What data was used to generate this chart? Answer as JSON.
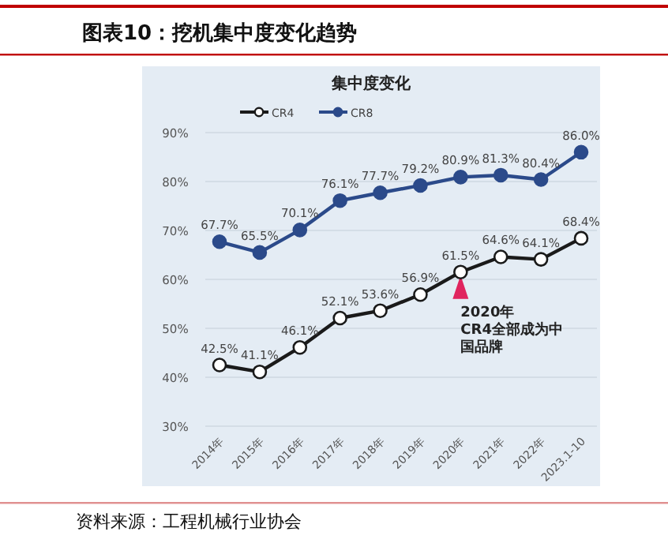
{
  "chart_data": {
    "type": "line",
    "title": "图表10：挖机集中度变化趋势",
    "subtitle": "集中度变化",
    "categories": [
      "2014年",
      "2015年",
      "2016年",
      "2017年",
      "2018年",
      "2019年",
      "2020年",
      "2021年",
      "2022年",
      "2023.1-10"
    ],
    "series": [
      {
        "name": "CR4",
        "color": "#1a1a1a",
        "values": [
          42.5,
          41.1,
          46.1,
          52.1,
          53.6,
          56.9,
          61.5,
          64.6,
          64.1,
          68.4
        ]
      },
      {
        "name": "CR8",
        "color": "#2b4a8a",
        "values": [
          67.7,
          65.5,
          70.1,
          76.1,
          77.7,
          79.2,
          80.9,
          81.3,
          80.4,
          86.0
        ]
      }
    ],
    "ylim": [
      30,
      90
    ],
    "yticks": [
      {
        "value": 30,
        "label": "30%"
      },
      {
        "value": 40,
        "label": "40%"
      },
      {
        "value": 50,
        "label": "50%"
      },
      {
        "value": 60,
        "label": "60%"
      },
      {
        "value": 70,
        "label": "70%"
      },
      {
        "value": 80,
        "label": "80%"
      },
      {
        "value": 90,
        "label": "90%"
      }
    ],
    "value_labels": [
      [
        "42.5%",
        "41.1%",
        "46.1%",
        "52.1%",
        "53.6%",
        "56.9%",
        "61.5%",
        "64.6%",
        "64.1%",
        "68.4%"
      ],
      [
        "67.7%",
        "65.5%",
        "70.1%",
        "76.1%",
        "77.7%",
        "79.2%",
        "80.9%",
        "81.3%",
        "80.4%",
        "86.0%"
      ]
    ],
    "grid": "y",
    "legend": "top left",
    "marker": "circle",
    "annotations": [
      {
        "text": "2020年\nCR4全部成为中国品牌",
        "x": "2020年",
        "y": 61.5
      },
      "资料来源：工程机械行业协会"
    ]
  }
}
